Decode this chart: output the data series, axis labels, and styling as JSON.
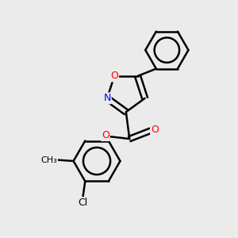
{
  "background_color": "#ebebeb",
  "bond_color": "#000000",
  "atom_colors": {
    "O": "#ff0000",
    "N": "#0000ff",
    "Cl": "#000000",
    "C": "#000000"
  },
  "figsize": [
    3.0,
    3.0
  ],
  "dpi": 100
}
